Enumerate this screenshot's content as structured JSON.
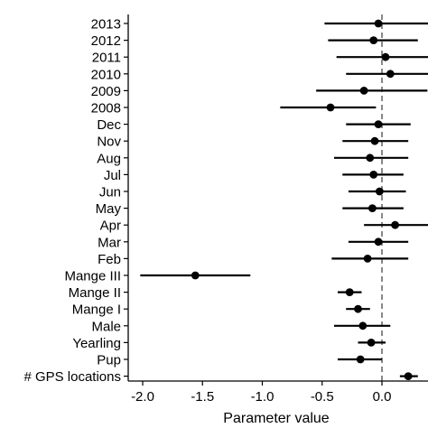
{
  "chart_data": {
    "type": "scatter",
    "subtype": "coefficient-plot",
    "title": "",
    "xlabel": "Parameter value",
    "ylabel": "",
    "xlim": [
      -2.2,
      0.4
    ],
    "x_ticks": [
      -2.0,
      -1.5,
      -1.0,
      -0.5,
      0.0
    ],
    "x_tick_labels": [
      "-2.0",
      "-1.5",
      "-1.0",
      "-0.5",
      "0.0"
    ],
    "reference_line": {
      "x": 0,
      "style": "dashed"
    },
    "grid": false,
    "legend": "none",
    "colors": {
      "marker": "#000000",
      "interval": "#000000",
      "reference": "#555555"
    },
    "categories": [
      "2013",
      "2012",
      "2011",
      "2010",
      "2009",
      "2008",
      "Dec",
      "Nov",
      "Aug",
      "Jul",
      "Jun",
      "May",
      "Apr",
      "Mar",
      "Feb",
      "Mange III",
      "Mange II",
      "Mange I",
      "Male",
      "Yearling",
      "Pup",
      "# GPS locations"
    ],
    "estimates": [
      -0.03,
      -0.07,
      0.03,
      0.07,
      -0.15,
      -0.43,
      -0.03,
      -0.06,
      -0.1,
      -0.07,
      -0.02,
      -0.08,
      0.11,
      -0.03,
      -0.12,
      -1.56,
      -0.27,
      -0.2,
      -0.16,
      -0.09,
      -0.18,
      0.22
    ],
    "lower": [
      -0.48,
      -0.45,
      -0.38,
      -0.3,
      -0.55,
      -0.85,
      -0.3,
      -0.33,
      -0.4,
      -0.33,
      -0.28,
      -0.33,
      -0.15,
      -0.28,
      -0.42,
      -2.02,
      -0.37,
      -0.3,
      -0.4,
      -0.2,
      -0.37,
      0.15
    ],
    "upper": [
      0.4,
      0.3,
      0.4,
      0.4,
      0.38,
      -0.05,
      0.24,
      0.22,
      0.22,
      0.18,
      0.2,
      0.18,
      0.4,
      0.22,
      0.22,
      -1.1,
      -0.17,
      -0.1,
      0.07,
      0.03,
      0.0,
      0.3
    ]
  }
}
